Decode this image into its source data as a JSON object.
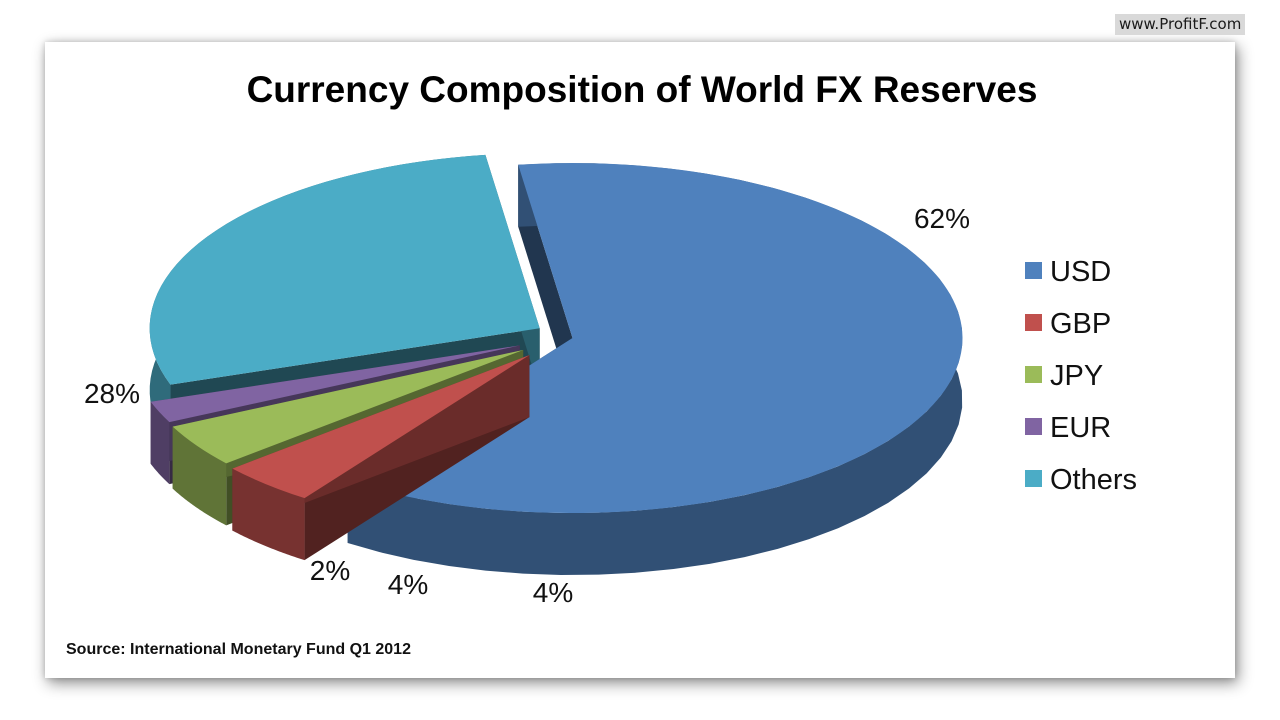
{
  "watermark": "www.ProfitF.com",
  "chart_data": {
    "type": "pie",
    "title": "Currency Composition of World FX Reserves",
    "categories": [
      "USD",
      "GBP",
      "JPY",
      "EUR",
      "Others"
    ],
    "values": [
      62,
      4,
      4,
      2,
      28
    ],
    "data_labels": [
      "62%",
      "4%",
      "4%",
      "2%",
      "28%"
    ],
    "colors": [
      "#4f81bd",
      "#c0504d",
      "#9bbb59",
      "#8064a2",
      "#4bacc6"
    ],
    "legend": {
      "position": "right",
      "entries": [
        "USD",
        "GBP",
        "JPY",
        "EUR",
        "Others"
      ]
    },
    "style": "3d-exploded",
    "source": "Source: International Monetary Fund Q1 2012"
  }
}
